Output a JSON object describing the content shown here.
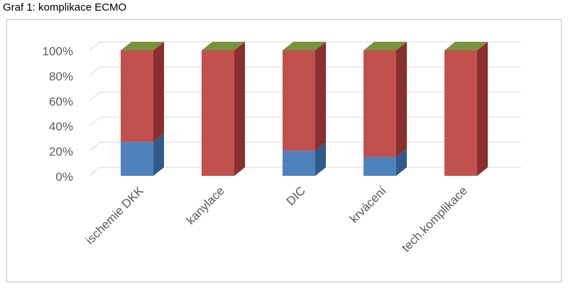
{
  "caption": "Graf 1: komplikace ECMO",
  "chart_data": {
    "type": "bar",
    "stacked": true,
    "percent_stacked": true,
    "three_d": true,
    "categories": [
      "ischemie DKK",
      "kanylace",
      "DIC",
      "krvácení",
      "tech.komplikace"
    ],
    "series": [
      {
        "values": [
          27,
          0,
          20,
          15,
          0
        ]
      },
      {
        "values": [
          73,
          100,
          80,
          85,
          100
        ]
      },
      {
        "values": [
          0,
          0,
          0,
          0,
          0
        ]
      }
    ],
    "yticks": [
      "0%",
      "20%",
      "40%",
      "60%",
      "80%",
      "100%"
    ],
    "ylim": [
      0,
      100
    ],
    "grid": true,
    "legend": "none",
    "colors": {
      "blue": "#4f81bd",
      "blue_side": "#2f5b8c",
      "red": "#c0504d",
      "red_side": "#8a2f2d",
      "green": "#77933c",
      "grid": "#d9d9d9",
      "axis_text": "#595959"
    }
  }
}
